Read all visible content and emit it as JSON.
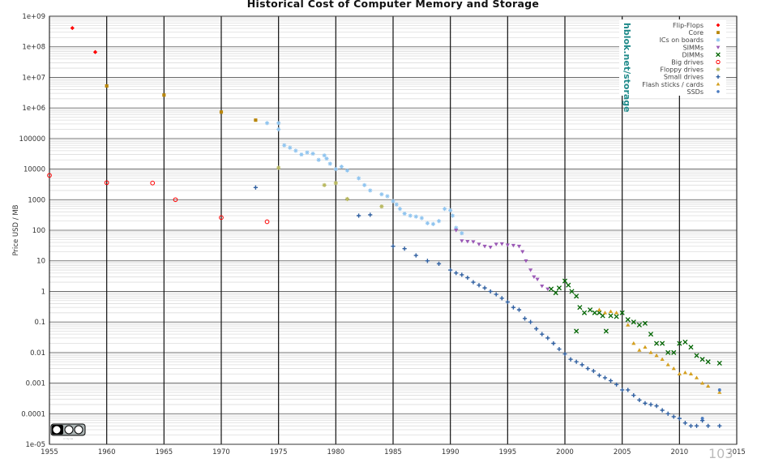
{
  "page_number": "103",
  "chart_data": {
    "type": "scatter",
    "title": "Historical Cost of Computer Memory and Storage",
    "ylabel": "Price USD / MB",
    "xlabel": "",
    "watermark": "hblok.net/storage",
    "license_badge": "cc by sa",
    "y_scale": "log",
    "xlim": [
      1955,
      2015
    ],
    "ylim": [
      1e-05,
      1000000000
    ],
    "grid": true,
    "legend_position": "top-right",
    "x_tick_labels": [
      "1955",
      "1960",
      "1965",
      "1970",
      "1975",
      "1980",
      "1985",
      "1990",
      "1995",
      "2000",
      "2005",
      "2010",
      "2015"
    ],
    "y_tick_labels": [
      "1e-05",
      "0.0001",
      "0.001",
      "0.01",
      "0.1",
      "1",
      "10",
      "100",
      "1000",
      "10000",
      "100000",
      "1e+06",
      "1e+07",
      "1e+08",
      "1e+09"
    ],
    "series": [
      {
        "name": "Flip-Flops",
        "color": "#ff0000",
        "marker": "diamond",
        "points": [
          [
            1957,
            411000000
          ],
          [
            1959,
            67200000
          ]
        ]
      },
      {
        "name": "Core",
        "color": "#b8860b",
        "marker": "square",
        "points": [
          [
            1960,
            5240000
          ],
          [
            1965,
            2640000
          ],
          [
            1970,
            734000
          ],
          [
            1973,
            400000
          ]
        ]
      },
      {
        "name": "ICs on boards",
        "color": "#8fc4ef",
        "marker": "star",
        "points": [
          [
            1974,
            320000
          ],
          [
            1975,
            320000
          ],
          [
            1975,
            200000
          ],
          [
            1975.5,
            60000
          ],
          [
            1976,
            50000
          ],
          [
            1976.5,
            40000
          ],
          [
            1977,
            30000
          ],
          [
            1977.5,
            35000
          ],
          [
            1978,
            32000
          ],
          [
            1978.5,
            20000
          ],
          [
            1979,
            28000
          ],
          [
            1979.2,
            22000
          ],
          [
            1979.5,
            15000
          ],
          [
            1980,
            10000
          ],
          [
            1980.5,
            12000
          ],
          [
            1981,
            9000
          ],
          [
            1982,
            5000
          ],
          [
            1982.5,
            3000
          ],
          [
            1983,
            2000
          ],
          [
            1984,
            1500
          ],
          [
            1984.5,
            1300
          ],
          [
            1985,
            900
          ],
          [
            1985.3,
            700
          ],
          [
            1985.6,
            500
          ],
          [
            1986,
            350
          ],
          [
            1986.5,
            300
          ],
          [
            1987,
            280
          ],
          [
            1987.5,
            250
          ],
          [
            1988,
            170
          ],
          [
            1988.5,
            160
          ],
          [
            1989,
            200
          ],
          [
            1989.5,
            500
          ],
          [
            1990,
            450
          ],
          [
            1990.2,
            300
          ],
          [
            1990.5,
            120
          ],
          [
            1991,
            80
          ]
        ]
      },
      {
        "name": "SIMMs",
        "color": "#9b59b6",
        "marker": "triangle-down",
        "points": [
          [
            1990.5,
            100
          ],
          [
            1991,
            45
          ],
          [
            1991.5,
            43
          ],
          [
            1992,
            42
          ],
          [
            1992.5,
            35
          ],
          [
            1993,
            30
          ],
          [
            1993.5,
            28
          ],
          [
            1994,
            35
          ],
          [
            1994.5,
            36
          ],
          [
            1995,
            33
          ],
          [
            1995.5,
            32
          ],
          [
            1996,
            30
          ],
          [
            1996.3,
            20
          ],
          [
            1996.6,
            10
          ],
          [
            1997,
            5
          ],
          [
            1997.3,
            3
          ],
          [
            1997.6,
            2.5
          ],
          [
            1998,
            1.5
          ],
          [
            1998.5,
            1.2
          ]
        ]
      },
      {
        "name": "DIMMs",
        "color": "#006400",
        "marker": "x",
        "points": [
          [
            1998.8,
            1.2
          ],
          [
            1999.2,
            0.9
          ],
          [
            1999.5,
            1.3
          ],
          [
            2000,
            2.2
          ],
          [
            2000.3,
            1.6
          ],
          [
            2000.6,
            1.0
          ],
          [
            2001,
            0.7
          ],
          [
            2001,
            0.05
          ],
          [
            2001.3,
            0.3
          ],
          [
            2001.7,
            0.2
          ],
          [
            2002.2,
            0.25
          ],
          [
            2002.6,
            0.2
          ],
          [
            2003,
            0.2
          ],
          [
            2003.3,
            0.16
          ],
          [
            2003.6,
            0.05
          ],
          [
            2004,
            0.16
          ],
          [
            2004.5,
            0.15
          ],
          [
            2005,
            0.2
          ],
          [
            2005.5,
            0.12
          ],
          [
            2006,
            0.1
          ],
          [
            2006.5,
            0.08
          ],
          [
            2007,
            0.09
          ],
          [
            2007.5,
            0.04
          ],
          [
            2008,
            0.02
          ],
          [
            2008.5,
            0.02
          ],
          [
            2009,
            0.01
          ],
          [
            2009.5,
            0.01
          ],
          [
            2010,
            0.02
          ],
          [
            2010.5,
            0.022
          ],
          [
            2011,
            0.015
          ],
          [
            2011.5,
            0.008
          ],
          [
            2012,
            0.006
          ],
          [
            2012.5,
            0.005
          ],
          [
            2013.5,
            0.0045
          ]
        ]
      },
      {
        "name": "Big drives",
        "color": "#ff0000",
        "marker": "circle-open",
        "points": [
          [
            1955,
            6233
          ],
          [
            1960,
            3600
          ],
          [
            1964,
            3500
          ],
          [
            1966,
            1000
          ],
          [
            1970,
            260
          ],
          [
            1974,
            190
          ]
        ]
      },
      {
        "name": "Floppy drives",
        "color": "#b8b860",
        "marker": "asterisk",
        "points": [
          [
            1975,
            11000
          ],
          [
            1979,
            3000
          ],
          [
            1980,
            3500
          ],
          [
            1981,
            1050
          ],
          [
            1984,
            600
          ]
        ]
      },
      {
        "name": "Small drives",
        "color": "#2f5fa0",
        "marker": "plus",
        "points": [
          [
            1973,
            2500
          ],
          [
            1982,
            300
          ],
          [
            1983,
            320
          ],
          [
            1985,
            30
          ],
          [
            1986,
            25
          ],
          [
            1987,
            15
          ],
          [
            1988,
            10
          ],
          [
            1989,
            8
          ],
          [
            1990,
            5
          ],
          [
            1990.5,
            4
          ],
          [
            1991,
            3.5
          ],
          [
            1991.5,
            2.8
          ],
          [
            1992,
            2
          ],
          [
            1992.5,
            1.6
          ],
          [
            1993,
            1.3
          ],
          [
            1993.5,
            1
          ],
          [
            1994,
            0.8
          ],
          [
            1994.5,
            0.6
          ],
          [
            1995,
            0.45
          ],
          [
            1995.5,
            0.3
          ],
          [
            1996,
            0.25
          ],
          [
            1996.5,
            0.13
          ],
          [
            1997,
            0.1
          ],
          [
            1997.5,
            0.06
          ],
          [
            1998,
            0.04
          ],
          [
            1998.5,
            0.03
          ],
          [
            1999,
            0.02
          ],
          [
            1999.5,
            0.013
          ],
          [
            2000,
            0.009
          ],
          [
            2000.5,
            0.006
          ],
          [
            2001,
            0.005
          ],
          [
            2001.5,
            0.004
          ],
          [
            2002,
            0.003
          ],
          [
            2002.5,
            0.0025
          ],
          [
            2003,
            0.0018
          ],
          [
            2003.5,
            0.0015
          ],
          [
            2004,
            0.0012
          ],
          [
            2004.5,
            0.0009
          ],
          [
            2005,
            0.0006
          ],
          [
            2005.5,
            0.0006
          ],
          [
            2006,
            0.0004
          ],
          [
            2006.5,
            0.00028
          ],
          [
            2007,
            0.00022
          ],
          [
            2007.5,
            0.0002
          ],
          [
            2008,
            0.00018
          ],
          [
            2008.5,
            0.00013
          ],
          [
            2009,
            0.0001
          ],
          [
            2009.5,
            8e-05
          ],
          [
            2010,
            7e-05
          ],
          [
            2010.5,
            5e-05
          ],
          [
            2011,
            4e-05
          ],
          [
            2011.5,
            4e-05
          ],
          [
            2012,
            6e-05
          ],
          [
            2012.5,
            4e-05
          ],
          [
            2013.5,
            4e-05
          ]
        ]
      },
      {
        "name": "Flash sticks / cards",
        "color": "#d4a020",
        "marker": "triangle-up",
        "points": [
          [
            2003,
            0.25
          ],
          [
            2003.5,
            0.2
          ],
          [
            2004,
            0.22
          ],
          [
            2004.5,
            0.2
          ],
          [
            2005.5,
            0.08
          ],
          [
            2006,
            0.02
          ],
          [
            2006.5,
            0.012
          ],
          [
            2007,
            0.015
          ],
          [
            2007.5,
            0.01
          ],
          [
            2008,
            0.008
          ],
          [
            2008.5,
            0.006
          ],
          [
            2009,
            0.004
          ],
          [
            2009.5,
            0.003
          ],
          [
            2010,
            0.002
          ],
          [
            2010.5,
            0.0022
          ],
          [
            2011,
            0.002
          ],
          [
            2011.5,
            0.0015
          ],
          [
            2012,
            0.001
          ],
          [
            2012.5,
            0.0008
          ],
          [
            2013.5,
            0.0005
          ]
        ]
      },
      {
        "name": "SSDs",
        "color": "#4a7bc0",
        "marker": "dot",
        "points": [
          [
            2012,
            7e-05
          ],
          [
            2013.5,
            0.0006
          ]
        ]
      }
    ]
  }
}
